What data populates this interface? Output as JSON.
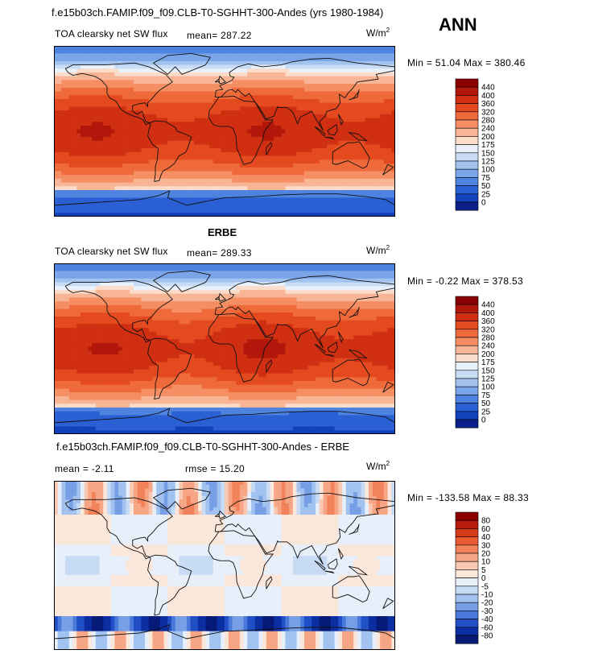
{
  "header": {
    "title": "f.e15b03ch.FAMIP.f09_f09.CLB-T0-SGHHT-300-Andes (yrs 1980-1984)",
    "season": "ANN"
  },
  "chart_data": [
    {
      "type": "heatmap",
      "panel": "model",
      "variable_label": "TOA clearsky net SW flux",
      "mean_text": "mean= 287.22",
      "units": "W/m",
      "units_exp": "2",
      "minmax_text": "Min =  51.04 Max = 380.46",
      "colorbar": {
        "levels": [
          "440",
          "400",
          "360",
          "320",
          "280",
          "240",
          "200",
          "175",
          "150",
          "125",
          "100",
          "75",
          "50",
          "25",
          "0"
        ],
        "colors": [
          "#8b0000",
          "#b2170b",
          "#d02f12",
          "#e44a1f",
          "#ef6a3a",
          "#f58e63",
          "#f8b596",
          "#fbdbc9",
          "#e9f1fb",
          "#c8dcf5",
          "#a3c3ef",
          "#7aa5e8",
          "#4f83e0",
          "#2a60d4",
          "#1340bb",
          "#0a1f8a"
        ]
      }
    },
    {
      "type": "heatmap",
      "panel": "observation",
      "dataset": "ERBE",
      "variable_label": "TOA clearsky net SW flux",
      "mean_text": "mean= 289.33",
      "units": "W/m",
      "units_exp": "2",
      "minmax_text": "Min =  -0.22 Max = 378.53",
      "colorbar": {
        "levels": [
          "440",
          "400",
          "360",
          "320",
          "280",
          "240",
          "200",
          "175",
          "150",
          "125",
          "100",
          "75",
          "50",
          "25",
          "0"
        ],
        "colors": [
          "#8b0000",
          "#b2170b",
          "#d02f12",
          "#e44a1f",
          "#ef6a3a",
          "#f58e63",
          "#f8b596",
          "#fbdbc9",
          "#e9f1fb",
          "#c8dcf5",
          "#a3c3ef",
          "#7aa5e8",
          "#4f83e0",
          "#2a60d4",
          "#1340bb",
          "#0a1f8a"
        ]
      }
    },
    {
      "type": "heatmap",
      "panel": "difference",
      "title": "f.e15b03ch.FAMIP.f09_f09.CLB-T0-SGHHT-300-Andes - ERBE",
      "mean_text": "mean =  -2.11",
      "rmse_text": "rmse =  15.20",
      "units": "W/m",
      "units_exp": "2",
      "minmax_text": "Min = -133.58 Max =  88.33",
      "colorbar": {
        "levels": [
          "80",
          "60",
          "40",
          "30",
          "20",
          "10",
          "5",
          "0",
          "-5",
          "-10",
          "-20",
          "-30",
          "-40",
          "-60",
          "-80"
        ],
        "colors": [
          "#8b0000",
          "#b71c0c",
          "#d63a18",
          "#ea5c30",
          "#f2825a",
          "#f6a585",
          "#f9c8b2",
          "#fbe6da",
          "#e6effa",
          "#c7dbf5",
          "#a2c2ef",
          "#779fe6",
          "#4a79dc",
          "#2150c6",
          "#0b2ea1",
          "#071a78"
        ]
      }
    }
  ]
}
